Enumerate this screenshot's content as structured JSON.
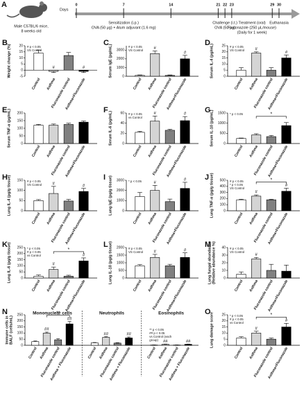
{
  "timeline": {
    "label": "A",
    "subject": [
      "Male C57BL/6 mice,",
      "8 weeks old"
    ],
    "axis_label": "Days",
    "days": [
      0,
      7,
      14,
      21,
      22,
      23,
      29,
      30
    ],
    "xlim": [
      0,
      30
    ],
    "phases": [
      {
        "title": "Sensitization (i.p.)",
        "detail": [
          "OVA (50 μg) + Alum adjuvant (1.6 mg)"
        ],
        "start": 0,
        "end": 14
      },
      {
        "title": "Challenge (i.t.)",
        "detail": [
          "OVA (50 μg)"
        ],
        "start": 21,
        "end": 23
      },
      {
        "title": "Treatment (oral)",
        "detail": [
          "Fluconazole (250 μL/mouse)",
          "(Daily for 1 week)"
        ],
        "start": 23,
        "end": 29
      },
      {
        "title": "Euthanasia",
        "start": 30,
        "end": 30
      }
    ]
  },
  "chart_data": [
    {
      "type": "bar",
      "label": "B",
      "ylabel": [
        "Weight change (%)"
      ],
      "categories": [
        "Control",
        "Asthma",
        "Fluconazole control",
        "Asthma+Fluconazole"
      ],
      "colors": [
        "#ffffff",
        "#d4d4d4",
        "#808080",
        "#000000"
      ],
      "values": [
        14,
        -1,
        12,
        -1
      ],
      "errors": [
        2.5,
        1,
        2.5,
        1
      ],
      "sig_labels": [
        null,
        "#",
        null,
        "#"
      ],
      "notes": [
        "# p < 0.05",
        "VS Control"
      ],
      "ylim": [
        -5,
        20
      ],
      "yticks": [
        -5,
        0,
        5,
        10,
        15,
        20
      ]
    },
    {
      "type": "bar",
      "label": "C",
      "ylabel": [
        "Serum IgE (pg/mL)"
      ],
      "categories": [
        "Control",
        "Asthma",
        "Fluconazole control",
        "Asthma+Fluconazole"
      ],
      "colors": [
        "#ffffff",
        "#d4d4d4",
        "#808080",
        "#000000"
      ],
      "values": [
        100,
        2600,
        100,
        2000
      ],
      "errors": [
        50,
        300,
        50,
        400
      ],
      "sig_labels": [
        null,
        "#",
        null,
        "#"
      ],
      "notes": [
        "# p < 0.05",
        "VS Control"
      ],
      "ylim": [
        0,
        3500
      ],
      "yticks": [
        0,
        1000,
        2000,
        3000
      ]
    },
    {
      "type": "bar",
      "label": "D",
      "ylabel": [
        "Serum IL-4 (pg/mL)"
      ],
      "categories": [
        "Control",
        "Asthma",
        "Fluconazole control",
        "Asthma+Fluconazole"
      ],
      "colors": [
        "#ffffff",
        "#d4d4d4",
        "#808080",
        "#000000"
      ],
      "values": [
        5,
        19,
        5,
        15
      ],
      "errors": [
        2,
        1,
        2,
        2.5
      ],
      "sig_labels": [
        null,
        "#",
        null,
        "#"
      ],
      "notes": [
        "# p < 0.05",
        "VS Control"
      ],
      "ylim": [
        0,
        25
      ],
      "yticks": [
        0,
        5,
        10,
        15,
        20,
        25
      ]
    },
    {
      "type": "bar",
      "label": "E",
      "ylabel": [
        "Serum TNF-α (pg/mL)"
      ],
      "categories": [
        "Control",
        "Asthma",
        "Fluconazole control",
        "Asthma+Fluconazole"
      ],
      "colors": [
        "#ffffff",
        "#d4d4d4",
        "#808080",
        "#000000"
      ],
      "values": [
        120,
        120,
        125,
        140
      ],
      "errors": [
        5,
        8,
        8,
        8
      ],
      "ylim": [
        0,
        200
      ],
      "yticks": [
        0,
        50,
        100,
        150,
        200
      ]
    },
    {
      "type": "bar",
      "label": "F",
      "ylabel": [
        "Serum IL-6 (pg/mL)"
      ],
      "categories": [
        "Control",
        "Asthma",
        "Fluconazole control",
        "Asthma+Fluconazole"
      ],
      "colors": [
        "#ffffff",
        "#d4d4d4",
        "#808080",
        "#000000"
      ],
      "values": [
        22,
        44,
        26,
        45
      ],
      "errors": [
        2,
        10,
        2,
        8
      ],
      "sig_labels": [
        null,
        "#",
        null,
        "#"
      ],
      "notes": [
        "# p < 0.05",
        "vs Control"
      ],
      "ylim": [
        0,
        60
      ],
      "yticks": [
        0,
        20,
        40,
        60
      ]
    },
    {
      "type": "bar",
      "label": "G",
      "ylabel": [
        "Serum IL-10 (pg/mL)"
      ],
      "categories": [
        "Control",
        "Asthma",
        "Fluconazole control",
        "Asthma+Fluconazole"
      ],
      "colors": [
        "#ffffff",
        "#d4d4d4",
        "#808080",
        "#000000"
      ],
      "values": [
        250,
        420,
        340,
        880
      ],
      "errors": [
        20,
        60,
        60,
        150
      ],
      "notes": [
        "* p < 0.05"
      ],
      "brackets": [
        {
          "between": [
            "Asthma",
            "Asthma+Fluconazole"
          ],
          "label": "*"
        }
      ],
      "ylim": [
        0,
        1500
      ],
      "yticks": [
        0,
        500,
        1000,
        1500
      ]
    },
    {
      "type": "bar",
      "label": "H",
      "ylabel": [
        "Lung IL-4 (pg/g tissue)"
      ],
      "categories": [
        "Control",
        "Asthma",
        "Fluconazole control",
        "Asthma+Fluconazole"
      ],
      "colors": [
        "#ffffff",
        "#d4d4d4",
        "#808080",
        "#000000"
      ],
      "values": [
        50,
        85,
        48,
        95
      ],
      "errors": [
        5,
        35,
        8,
        15
      ],
      "sig_labels": [
        null,
        "#",
        null,
        "#"
      ],
      "notes": [
        "# p < 0.05",
        "VS Control"
      ],
      "ylim": [
        0,
        150
      ],
      "yticks": [
        0,
        50,
        100,
        150
      ]
    },
    {
      "type": "bar",
      "label": "I",
      "ylabel": [
        "Lung IgE (pg/g tissue)"
      ],
      "categories": [
        "Control",
        "Asthma",
        "Fluconazole control",
        "Asthma+Fluconazole"
      ],
      "colors": [
        "#ffffff",
        "#d4d4d4",
        "#808080",
        "#000000"
      ],
      "values": [
        1400,
        2000,
        900,
        2200
      ],
      "errors": [
        400,
        500,
        250,
        600
      ],
      "sig_labels": [
        null,
        "#",
        null,
        "#"
      ],
      "notes": [
        "* p < 0.05"
      ],
      "ylim": [
        0,
        3000
      ],
      "yticks": [
        0,
        1000,
        2000,
        3000
      ]
    },
    {
      "type": "bar",
      "label": "J",
      "ylabel": [
        "Lung TNF-α (pg/g tissue)"
      ],
      "categories": [
        "Control",
        "Asthma",
        "Fluconazole control",
        "Asthma+Fluconazole"
      ],
      "colors": [
        "#ffffff",
        "#d4d4d4",
        "#808080",
        "#000000"
      ],
      "values": [
        180,
        240,
        180,
        320
      ],
      "errors": [
        10,
        20,
        10,
        50
      ],
      "sig_labels": [
        null,
        "#",
        null,
        "#"
      ],
      "notes": [
        "# p < 0.05",
        "* p < 0.05",
        "VS Control"
      ],
      "brackets": [
        {
          "between": [
            "Asthma",
            "Asthma+Fluconazole"
          ],
          "label": "*"
        }
      ],
      "ylim": [
        0,
        500
      ],
      "yticks": [
        0,
        100,
        200,
        300,
        400,
        500
      ]
    },
    {
      "type": "bar",
      "label": "K",
      "ylabel": [
        "Lung IL-6 (pg/g tissue)"
      ],
      "categories": [
        "Control",
        "Asthma",
        "Fluconazole control",
        "Asthma+Fluconazole"
      ],
      "colors": [
        "#ffffff",
        "#d4d4d4",
        "#808080",
        "#000000"
      ],
      "values": [
        15,
        70,
        15,
        140
      ],
      "errors": [
        10,
        20,
        8,
        25
      ],
      "sig_labels": [
        null,
        "#",
        null,
        "#"
      ],
      "notes": [
        "* p < 0.05",
        "# p < 0.05",
        "vs Control"
      ],
      "brackets": [
        {
          "between": [
            "Asthma",
            "Asthma+Fluconazole"
          ],
          "label": "*"
        }
      ],
      "ylim": [
        0,
        250
      ],
      "yticks": [
        0,
        50,
        100,
        150,
        200,
        250
      ]
    },
    {
      "type": "bar",
      "label": "L",
      "ylabel": [
        "Lung IL-10 (pg/g tissue)"
      ],
      "categories": [
        "Control",
        "Asthma",
        "Fluconazole control",
        "Asthma+Fluconazole"
      ],
      "colors": [
        "#ffffff",
        "#d4d4d4",
        "#808080",
        "#000000"
      ],
      "values": [
        800,
        1350,
        800,
        1350
      ],
      "errors": [
        80,
        200,
        100,
        300
      ],
      "sig_labels": [
        null,
        "#",
        null,
        "#"
      ],
      "notes": [
        "# p < 0.05",
        "VS Control"
      ],
      "ylim": [
        0,
        2000
      ],
      "yticks": [
        0,
        500,
        1000,
        1500,
        2000
      ]
    },
    {
      "type": "bar",
      "label": "M",
      "ylabel": [
        "Lung fungal abundance",
        "(Relative abundance %)"
      ],
      "categories": [
        "Control",
        "Asthma",
        "Fluconazole control",
        "Asthma+Fluconazole"
      ],
      "colors": [
        "#ffffff",
        "#d4d4d4",
        "#808080",
        "#000000"
      ],
      "values": [
        5,
        25,
        10,
        9
      ],
      "errors": [
        3,
        2,
        8,
        8
      ],
      "sig_labels": [
        null,
        "#",
        null,
        null
      ],
      "notes": [
        "# p < 0.05",
        "VS Control"
      ],
      "ylim": [
        0,
        40
      ],
      "yticks": [
        0,
        10,
        20,
        30,
        40
      ]
    },
    {
      "type": "grouped_bar",
      "label": "N",
      "ylabel": [
        "Immune cells in",
        "BALF (cells/mL)"
      ],
      "groups": [
        "Mononuclear cells",
        "Neutrophils",
        "Eosinophils"
      ],
      "categories": [
        "Control",
        "Asthma",
        "Fluconazole control",
        "Asthma + Fluconazole"
      ],
      "colors": [
        "#ffffff",
        "#d4d4d4",
        "#808080",
        "#000000"
      ],
      "values": [
        [
          30,
          100,
          45,
          175
        ],
        [
          20,
          65,
          18,
          60
        ],
        [
          2,
          8,
          2,
          8
        ]
      ],
      "errors": [
        [
          5,
          8,
          8,
          20
        ],
        [
          3,
          5,
          3,
          8
        ],
        [
          1,
          2,
          1,
          2
        ]
      ],
      "sig_labels": [
        [
          null,
          "##",
          null,
          "##"
        ],
        [
          null,
          "##",
          null,
          "##"
        ],
        [
          null,
          "##",
          null,
          "##"
        ]
      ],
      "notes": [
        "** p < 0.05",
        "## p < 0.05",
        "vs Control (each",
        "group)"
      ],
      "brackets": [
        {
          "group": "Mononuclear cells",
          "between": [
            "Asthma",
            "Asthma + Fluconazole"
          ],
          "label": "**"
        }
      ],
      "ylim": [
        0,
        250
      ],
      "yticks": [
        0,
        50,
        100,
        150,
        200,
        250
      ]
    },
    {
      "type": "bar",
      "label": "O",
      "ylabel": [
        "Lung damage score"
      ],
      "categories": [
        "Control",
        "Asthma",
        "Fluconazole control",
        "Asthma+Fluconazole"
      ],
      "colors": [
        "#ffffff",
        "#d4d4d4",
        "#808080",
        "#000000"
      ],
      "values": [
        6,
        10,
        5,
        15
      ],
      "errors": [
        1,
        1.5,
        1,
        3
      ],
      "sig_labels": [
        null,
        "#",
        null,
        "#"
      ],
      "notes": [
        "* p < 0.05",
        "# p < 0.05",
        "vs Control"
      ],
      "brackets": [
        {
          "between": [
            "Asthma",
            "Asthma+Fluconazole"
          ],
          "label": "*"
        }
      ],
      "ylim": [
        0,
        25
      ],
      "yticks": [
        0,
        5,
        10,
        15,
        20,
        25
      ]
    }
  ]
}
